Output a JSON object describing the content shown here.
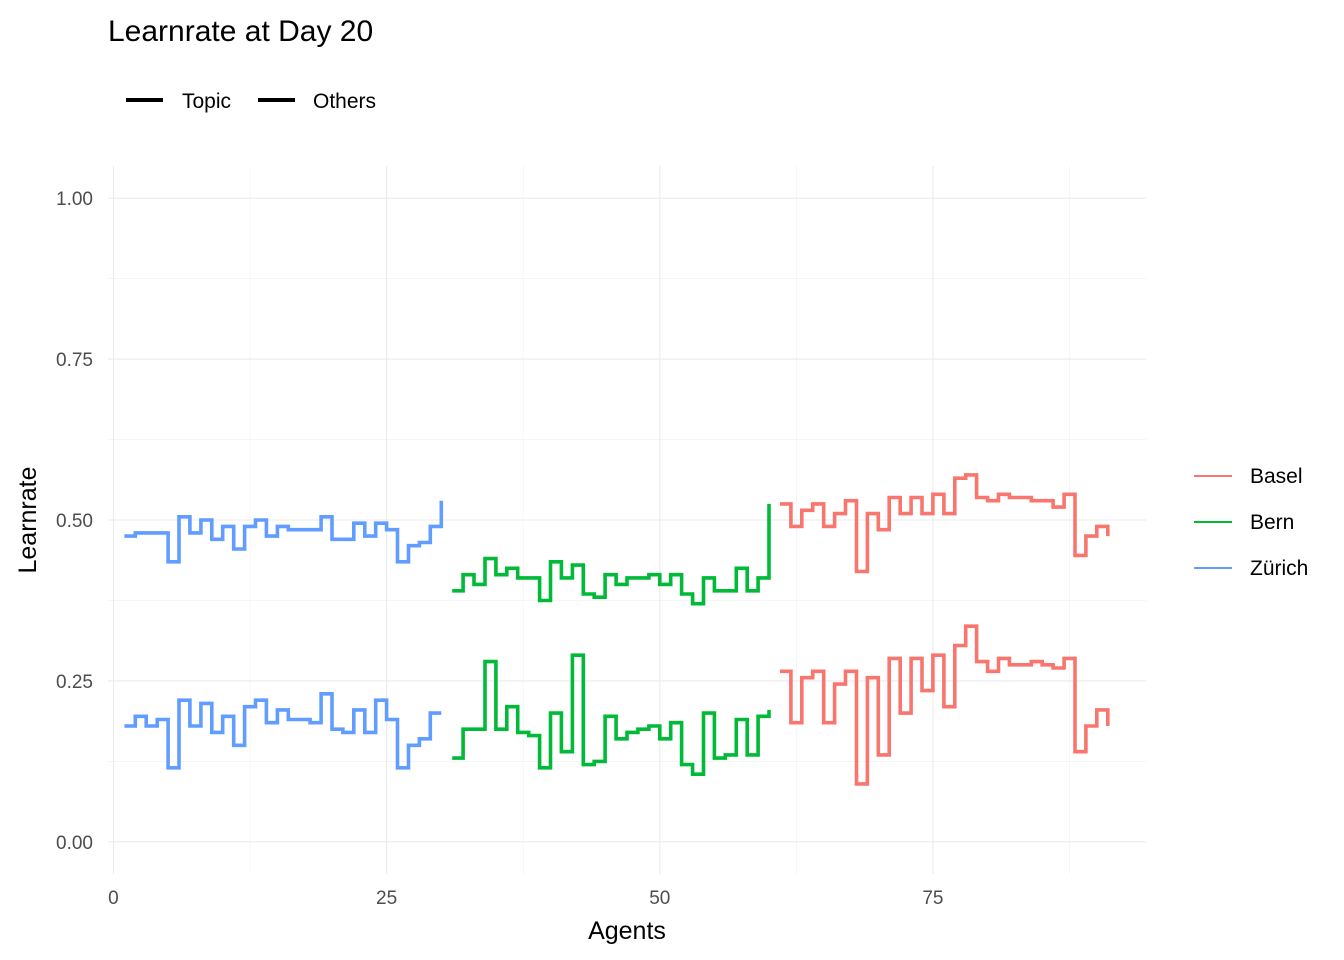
{
  "chart_data": {
    "type": "line",
    "step": true,
    "title": "Learnrate at Day 20",
    "xlabel": "Agents",
    "ylabel": "Learnrate",
    "xlim": [
      -0.5,
      94.5
    ],
    "ylim": [
      -0.05,
      1.05
    ],
    "x_ticks": [
      0,
      25,
      50,
      75
    ],
    "y_ticks": [
      0.0,
      0.25,
      0.5,
      0.75,
      1.0
    ],
    "x_tick_labels": [
      "0",
      "25",
      "50",
      "75"
    ],
    "y_tick_labels": [
      "0.00",
      "0.25",
      "0.50",
      "0.75",
      "1.00"
    ],
    "grid": true,
    "linetype_legend": {
      "position": "top-left",
      "items": [
        {
          "label": "Topic",
          "color": "#000000"
        },
        {
          "label": "Others",
          "color": "#000000"
        }
      ]
    },
    "color_legend": {
      "position": "right",
      "items": [
        {
          "label": "Basel",
          "color": "#F8766D"
        },
        {
          "label": "Bern",
          "color": "#00BA38"
        },
        {
          "label": "Zürich",
          "color": "#619CFF"
        }
      ]
    },
    "series": [
      {
        "name": "Zürich",
        "group": "Topic",
        "color": "#619CFF",
        "x_start": 1,
        "values": [
          0.475,
          0.48,
          0.48,
          0.48,
          0.435,
          0.505,
          0.48,
          0.5,
          0.47,
          0.49,
          0.455,
          0.49,
          0.5,
          0.475,
          0.49,
          0.485,
          0.485,
          0.485,
          0.505,
          0.47,
          0.47,
          0.495,
          0.475,
          0.495,
          0.485,
          0.435,
          0.46,
          0.465,
          0.49,
          0.53
        ]
      },
      {
        "name": "Zürich",
        "group": "Others",
        "color": "#619CFF",
        "x_start": 1,
        "values": [
          0.18,
          0.195,
          0.18,
          0.19,
          0.115,
          0.22,
          0.18,
          0.215,
          0.17,
          0.195,
          0.15,
          0.21,
          0.22,
          0.185,
          0.205,
          0.19,
          0.19,
          0.185,
          0.23,
          0.175,
          0.17,
          0.205,
          0.17,
          0.22,
          0.19,
          0.115,
          0.15,
          0.16,
          0.2,
          0.2
        ]
      },
      {
        "name": "Bern",
        "group": "Topic",
        "color": "#00BA38",
        "x_start": 31,
        "values": [
          0.39,
          0.415,
          0.4,
          0.44,
          0.415,
          0.425,
          0.41,
          0.41,
          0.375,
          0.435,
          0.41,
          0.43,
          0.385,
          0.38,
          0.415,
          0.4,
          0.41,
          0.41,
          0.415,
          0.4,
          0.415,
          0.385,
          0.37,
          0.41,
          0.39,
          0.39,
          0.425,
          0.39,
          0.41,
          0.525
        ]
      },
      {
        "name": "Bern",
        "group": "Others",
        "color": "#00BA38",
        "x_start": 31,
        "values": [
          0.13,
          0.175,
          0.175,
          0.28,
          0.175,
          0.21,
          0.17,
          0.165,
          0.115,
          0.2,
          0.14,
          0.29,
          0.12,
          0.125,
          0.195,
          0.16,
          0.17,
          0.175,
          0.18,
          0.16,
          0.185,
          0.12,
          0.105,
          0.2,
          0.13,
          0.135,
          0.19,
          0.135,
          0.195,
          0.205
        ]
      },
      {
        "name": "Basel",
        "group": "Topic",
        "color": "#F8766D",
        "x_start": 61,
        "values": [
          0.525,
          0.49,
          0.515,
          0.525,
          0.49,
          0.51,
          0.53,
          0.42,
          0.51,
          0.485,
          0.535,
          0.51,
          0.535,
          0.51,
          0.54,
          0.51,
          0.565,
          0.57,
          0.535,
          0.53,
          0.54,
          0.535,
          0.535,
          0.53,
          0.53,
          0.52,
          0.54,
          0.445,
          0.475,
          0.49,
          0.475
        ]
      },
      {
        "name": "Basel",
        "group": "Others",
        "color": "#F8766D",
        "x_start": 61,
        "values": [
          0.265,
          0.185,
          0.255,
          0.265,
          0.185,
          0.245,
          0.265,
          0.09,
          0.255,
          0.135,
          0.285,
          0.2,
          0.285,
          0.235,
          0.29,
          0.21,
          0.305,
          0.335,
          0.28,
          0.265,
          0.285,
          0.275,
          0.275,
          0.28,
          0.275,
          0.27,
          0.285,
          0.14,
          0.18,
          0.205,
          0.18
        ]
      }
    ]
  }
}
